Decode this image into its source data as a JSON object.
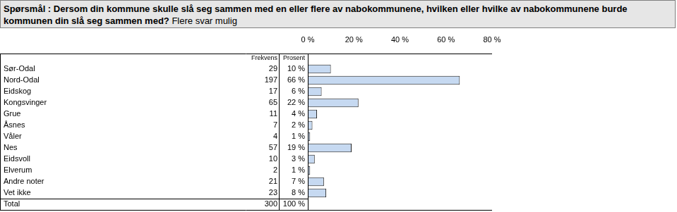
{
  "chart_data": {
    "type": "bar",
    "orientation": "horizontal",
    "title": "Spørsmål : Dersom din kommune skulle slå seg sammen med en eller flere av nabokommunene, hvilken eller hvilke av nabokommunene burde kommunen din slå seg sammen med?",
    "subtitle": "Flere svar mulig",
    "categories": [
      "Sør-Odal",
      "Nord-Odal",
      "Eidskog",
      "Kongsvinger",
      "Grue",
      "Åsnes",
      "Våler",
      "Nes",
      "Eidsvoll",
      "Elverum",
      "Andre noter",
      "Vet ikke"
    ],
    "values": [
      10,
      66,
      6,
      22,
      4,
      2,
      1,
      19,
      3,
      1,
      7,
      8
    ],
    "value_labels": [
      "10 %",
      "66 %",
      "6 %",
      "22 %",
      "4 %",
      "2 %",
      "1 %",
      "19 %",
      "3 %",
      "1 %",
      "7 %",
      "8 %"
    ],
    "frequencies": [
      29,
      197,
      17,
      65,
      11,
      7,
      4,
      57,
      10,
      2,
      21,
      23
    ],
    "column_headers": [
      "Frekvens",
      "Prosent"
    ],
    "total": {
      "label": "Total",
      "frequency": 300,
      "percent_label": "100 %"
    },
    "color": "#c6d9f1",
    "xlim": [
      0,
      80
    ],
    "xticks": [
      {
        "value": 0,
        "label": "0 %"
      },
      {
        "value": 20,
        "label": "20 %"
      },
      {
        "value": 40,
        "label": "40 %"
      },
      {
        "value": 60,
        "label": "60 %"
      },
      {
        "value": 80,
        "label": "80 %"
      }
    ],
    "grid": false
  }
}
